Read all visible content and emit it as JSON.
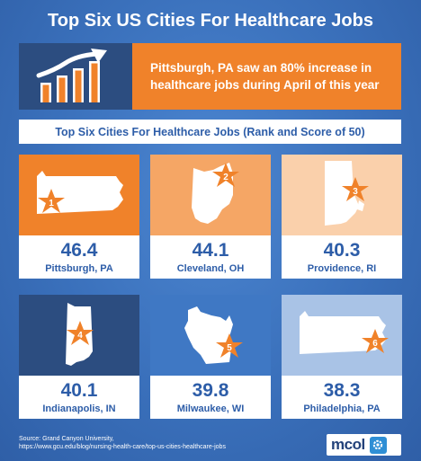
{
  "title": "Top Six US Cities For Healthcare Jobs",
  "hero": {
    "icon": "bar-chart-growth-icon",
    "text": "Pittsburgh, PA saw an 80% increase in healthcare jobs during April of this year"
  },
  "subtitle": "Top Six Cities For Healthcare Jobs (Rank and Score of 50)",
  "cities": [
    {
      "rank": "1",
      "score": "46.4",
      "city": "Pittsburgh, PA",
      "state_icon": "pennsylvania-map-icon",
      "bg": "#f0822a"
    },
    {
      "rank": "2",
      "score": "44.1",
      "city": "Cleveland, OH",
      "state_icon": "ohio-map-icon",
      "bg": "#f5a665"
    },
    {
      "rank": "3",
      "score": "40.3",
      "city": "Providence, RI",
      "state_icon": "rhode-island-map-icon",
      "bg": "#fad0ab"
    },
    {
      "rank": "4",
      "score": "40.1",
      "city": "Indianapolis, IN",
      "state_icon": "indiana-map-icon",
      "bg": "#2c4d80"
    },
    {
      "rank": "5",
      "score": "39.8",
      "city": "Milwaukee, WI",
      "state_icon": "wisconsin-map-icon",
      "bg": "#3f78c4"
    },
    {
      "rank": "6",
      "score": "38.3",
      "city": "Philadelphia, PA",
      "state_icon": "pennsylvania-map-icon",
      "bg": "#a9c3e6"
    }
  ],
  "colors": {
    "accent": "#f0822a",
    "navy": "#2c4d80",
    "blue": "#2d5da8",
    "star": "#f0822a"
  },
  "source": {
    "line1": "Source:  Grand Canyon University,",
    "line2": "https://www.gcu.edu/blog/nursing-health-care/top-us-cities-healthcare-jobs"
  },
  "logo": {
    "text": "mcol",
    "badge_icon": "mcol-gear-icon"
  }
}
